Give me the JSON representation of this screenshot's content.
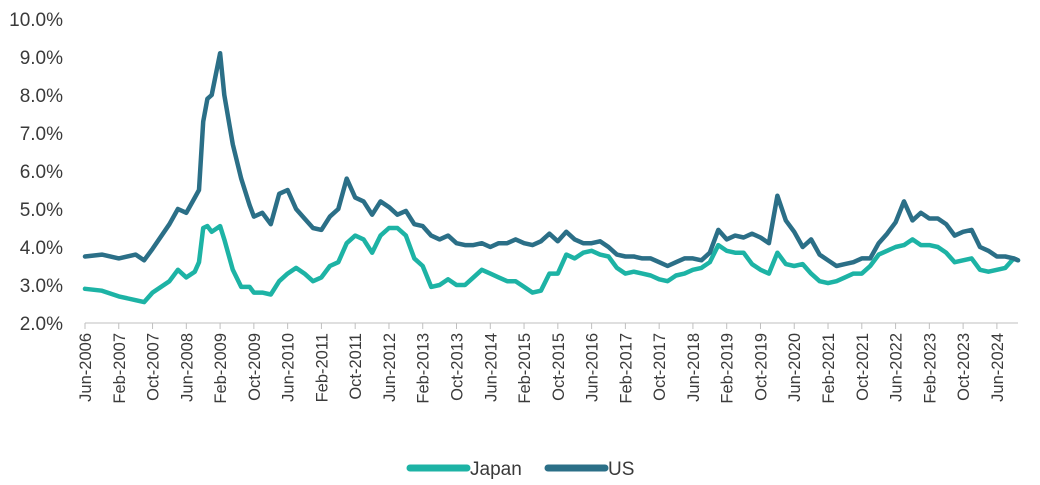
{
  "chart_data": {
    "type": "line",
    "title": "",
    "xlabel": "",
    "ylabel": "",
    "ylim": [
      2.0,
      10.0
    ],
    "yticks": [
      "2.0%",
      "3.0%",
      "4.0%",
      "5.0%",
      "6.0%",
      "7.0%",
      "8.0%",
      "9.0%",
      "10.0%"
    ],
    "xticks": [
      "Jun-2006",
      "Feb-2007",
      "Oct-2007",
      "Jun-2008",
      "Feb-2009",
      "Oct-2009",
      "Jun-2010",
      "Feb-2011",
      "Oct-2011",
      "Jun-2012",
      "Feb-2013",
      "Oct-2013",
      "Jun-2014",
      "Feb-2015",
      "Oct-2015",
      "Jun-2016",
      "Feb-2017",
      "Oct-2017",
      "Jun-2018",
      "Feb-2019",
      "Oct-2019",
      "Jun-2020",
      "Feb-2021",
      "Oct-2021",
      "Jun-2022",
      "Feb-2023",
      "Oct-2023",
      "Jun-2024"
    ],
    "x_start": "Jun-2006",
    "x_end": "Nov-2024",
    "grid": false,
    "legend_position": "bottom-center",
    "series": [
      {
        "name": "Japan",
        "color": "#1db3a5",
        "points": [
          [
            "Jun-2006",
            2.9
          ],
          [
            "Oct-2006",
            2.85
          ],
          [
            "Feb-2007",
            2.7
          ],
          [
            "Jun-2007",
            2.6
          ],
          [
            "Aug-2007",
            2.55
          ],
          [
            "Oct-2007",
            2.8
          ],
          [
            "Feb-2008",
            3.1
          ],
          [
            "Apr-2008",
            3.4
          ],
          [
            "Jun-2008",
            3.2
          ],
          [
            "Aug-2008",
            3.35
          ],
          [
            "Sep-2008",
            3.6
          ],
          [
            "Oct-2008",
            4.5
          ],
          [
            "Nov-2008",
            4.55
          ],
          [
            "Dec-2008",
            4.4
          ],
          [
            "Feb-2009",
            4.55
          ],
          [
            "Mar-2009",
            4.2
          ],
          [
            "May-2009",
            3.4
          ],
          [
            "Jul-2009",
            2.95
          ],
          [
            "Sep-2009",
            2.95
          ],
          [
            "Oct-2009",
            2.8
          ],
          [
            "Dec-2009",
            2.8
          ],
          [
            "Feb-2010",
            2.75
          ],
          [
            "Apr-2010",
            3.1
          ],
          [
            "Jun-2010",
            3.3
          ],
          [
            "Aug-2010",
            3.45
          ],
          [
            "Oct-2010",
            3.3
          ],
          [
            "Dec-2010",
            3.1
          ],
          [
            "Feb-2011",
            3.2
          ],
          [
            "Apr-2011",
            3.5
          ],
          [
            "Jun-2011",
            3.6
          ],
          [
            "Aug-2011",
            4.1
          ],
          [
            "Oct-2011",
            4.3
          ],
          [
            "Dec-2011",
            4.2
          ],
          [
            "Feb-2012",
            3.85
          ],
          [
            "Apr-2012",
            4.3
          ],
          [
            "Jun-2012",
            4.5
          ],
          [
            "Aug-2012",
            4.5
          ],
          [
            "Oct-2012",
            4.3
          ],
          [
            "Dec-2012",
            3.7
          ],
          [
            "Feb-2013",
            3.5
          ],
          [
            "Apr-2013",
            2.95
          ],
          [
            "Jun-2013",
            3.0
          ],
          [
            "Aug-2013",
            3.15
          ],
          [
            "Oct-2013",
            3.0
          ],
          [
            "Dec-2013",
            3.0
          ],
          [
            "Feb-2014",
            3.2
          ],
          [
            "Apr-2014",
            3.4
          ],
          [
            "Jun-2014",
            3.3
          ],
          [
            "Aug-2014",
            3.2
          ],
          [
            "Oct-2014",
            3.1
          ],
          [
            "Dec-2014",
            3.1
          ],
          [
            "Feb-2015",
            2.95
          ],
          [
            "Apr-2015",
            2.8
          ],
          [
            "Jun-2015",
            2.85
          ],
          [
            "Aug-2015",
            3.3
          ],
          [
            "Oct-2015",
            3.3
          ],
          [
            "Dec-2015",
            3.8
          ],
          [
            "Feb-2016",
            3.7
          ],
          [
            "Apr-2016",
            3.85
          ],
          [
            "Jun-2016",
            3.9
          ],
          [
            "Aug-2016",
            3.8
          ],
          [
            "Oct-2016",
            3.75
          ],
          [
            "Dec-2016",
            3.45
          ],
          [
            "Feb-2017",
            3.3
          ],
          [
            "Apr-2017",
            3.35
          ],
          [
            "Jun-2017",
            3.3
          ],
          [
            "Aug-2017",
            3.25
          ],
          [
            "Oct-2017",
            3.15
          ],
          [
            "Dec-2017",
            3.1
          ],
          [
            "Feb-2018",
            3.25
          ],
          [
            "Apr-2018",
            3.3
          ],
          [
            "Jun-2018",
            3.4
          ],
          [
            "Aug-2018",
            3.45
          ],
          [
            "Oct-2018",
            3.6
          ],
          [
            "Dec-2018",
            4.05
          ],
          [
            "Feb-2019",
            3.9
          ],
          [
            "Apr-2019",
            3.85
          ],
          [
            "Jun-2019",
            3.85
          ],
          [
            "Aug-2019",
            3.55
          ],
          [
            "Oct-2019",
            3.4
          ],
          [
            "Dec-2019",
            3.3
          ],
          [
            "Feb-2020",
            3.85
          ],
          [
            "Apr-2020",
            3.55
          ],
          [
            "Jun-2020",
            3.5
          ],
          [
            "Aug-2020",
            3.55
          ],
          [
            "Oct-2020",
            3.3
          ],
          [
            "Dec-2020",
            3.1
          ],
          [
            "Feb-2021",
            3.05
          ],
          [
            "Apr-2021",
            3.1
          ],
          [
            "Jun-2021",
            3.2
          ],
          [
            "Aug-2021",
            3.3
          ],
          [
            "Oct-2021",
            3.3
          ],
          [
            "Dec-2021",
            3.5
          ],
          [
            "Feb-2022",
            3.8
          ],
          [
            "Apr-2022",
            3.9
          ],
          [
            "Jun-2022",
            4.0
          ],
          [
            "Aug-2022",
            4.05
          ],
          [
            "Oct-2022",
            4.2
          ],
          [
            "Dec-2022",
            4.05
          ],
          [
            "Feb-2023",
            4.05
          ],
          [
            "Apr-2023",
            4.0
          ],
          [
            "Jun-2023",
            3.85
          ],
          [
            "Aug-2023",
            3.6
          ],
          [
            "Oct-2023",
            3.65
          ],
          [
            "Dec-2023",
            3.7
          ],
          [
            "Feb-2024",
            3.4
          ],
          [
            "Apr-2024",
            3.35
          ],
          [
            "Jun-2024",
            3.4
          ],
          [
            "Aug-2024",
            3.45
          ],
          [
            "Oct-2024",
            3.7
          ],
          [
            "Nov-2024",
            3.65
          ]
        ]
      },
      {
        "name": "US",
        "color": "#2b6f87",
        "points": [
          [
            "Jun-2006",
            3.75
          ],
          [
            "Oct-2006",
            3.8
          ],
          [
            "Feb-2007",
            3.7
          ],
          [
            "Jun-2007",
            3.8
          ],
          [
            "Aug-2007",
            3.65
          ],
          [
            "Oct-2007",
            3.95
          ],
          [
            "Feb-2008",
            4.6
          ],
          [
            "Apr-2008",
            5.0
          ],
          [
            "Jun-2008",
            4.9
          ],
          [
            "Aug-2008",
            5.3
          ],
          [
            "Sep-2008",
            5.5
          ],
          [
            "Oct-2008",
            7.3
          ],
          [
            "Nov-2008",
            7.9
          ],
          [
            "Dec-2008",
            8.0
          ],
          [
            "Feb-2009",
            9.1
          ],
          [
            "Mar-2009",
            8.0
          ],
          [
            "May-2009",
            6.7
          ],
          [
            "Jul-2009",
            5.8
          ],
          [
            "Sep-2009",
            5.1
          ],
          [
            "Oct-2009",
            4.8
          ],
          [
            "Dec-2009",
            4.9
          ],
          [
            "Feb-2010",
            4.6
          ],
          [
            "Apr-2010",
            5.4
          ],
          [
            "Jun-2010",
            5.5
          ],
          [
            "Aug-2010",
            5.0
          ],
          [
            "Oct-2010",
            4.75
          ],
          [
            "Dec-2010",
            4.5
          ],
          [
            "Feb-2011",
            4.45
          ],
          [
            "Apr-2011",
            4.8
          ],
          [
            "Jun-2011",
            5.0
          ],
          [
            "Aug-2011",
            5.8
          ],
          [
            "Oct-2011",
            5.3
          ],
          [
            "Dec-2011",
            5.2
          ],
          [
            "Feb-2012",
            4.85
          ],
          [
            "Apr-2012",
            5.2
          ],
          [
            "Jun-2012",
            5.05
          ],
          [
            "Aug-2012",
            4.85
          ],
          [
            "Oct-2012",
            4.95
          ],
          [
            "Dec-2012",
            4.6
          ],
          [
            "Feb-2013",
            4.55
          ],
          [
            "Apr-2013",
            4.3
          ],
          [
            "Jun-2013",
            4.2
          ],
          [
            "Aug-2013",
            4.3
          ],
          [
            "Oct-2013",
            4.1
          ],
          [
            "Dec-2013",
            4.05
          ],
          [
            "Feb-2014",
            4.05
          ],
          [
            "Apr-2014",
            4.1
          ],
          [
            "Jun-2014",
            4.0
          ],
          [
            "Aug-2014",
            4.1
          ],
          [
            "Oct-2014",
            4.1
          ],
          [
            "Dec-2014",
            4.2
          ],
          [
            "Feb-2015",
            4.1
          ],
          [
            "Apr-2015",
            4.05
          ],
          [
            "Jun-2015",
            4.15
          ],
          [
            "Aug-2015",
            4.35
          ],
          [
            "Oct-2015",
            4.15
          ],
          [
            "Dec-2015",
            4.4
          ],
          [
            "Feb-2016",
            4.2
          ],
          [
            "Apr-2016",
            4.1
          ],
          [
            "Jun-2016",
            4.1
          ],
          [
            "Aug-2016",
            4.15
          ],
          [
            "Oct-2016",
            4.0
          ],
          [
            "Dec-2016",
            3.8
          ],
          [
            "Feb-2017",
            3.75
          ],
          [
            "Apr-2017",
            3.75
          ],
          [
            "Jun-2017",
            3.7
          ],
          [
            "Aug-2017",
            3.7
          ],
          [
            "Oct-2017",
            3.6
          ],
          [
            "Dec-2017",
            3.5
          ],
          [
            "Feb-2018",
            3.6
          ],
          [
            "Apr-2018",
            3.7
          ],
          [
            "Jun-2018",
            3.7
          ],
          [
            "Aug-2018",
            3.65
          ],
          [
            "Oct-2018",
            3.85
          ],
          [
            "Dec-2018",
            4.45
          ],
          [
            "Feb-2019",
            4.2
          ],
          [
            "Apr-2019",
            4.3
          ],
          [
            "Jun-2019",
            4.25
          ],
          [
            "Aug-2019",
            4.35
          ],
          [
            "Oct-2019",
            4.25
          ],
          [
            "Dec-2019",
            4.1
          ],
          [
            "Feb-2020",
            5.35
          ],
          [
            "Apr-2020",
            4.7
          ],
          [
            "Jun-2020",
            4.4
          ],
          [
            "Aug-2020",
            4.0
          ],
          [
            "Oct-2020",
            4.2
          ],
          [
            "Dec-2020",
            3.8
          ],
          [
            "Feb-2021",
            3.65
          ],
          [
            "Apr-2021",
            3.5
          ],
          [
            "Jun-2021",
            3.55
          ],
          [
            "Aug-2021",
            3.6
          ],
          [
            "Oct-2021",
            3.7
          ],
          [
            "Dec-2021",
            3.7
          ],
          [
            "Feb-2022",
            4.1
          ],
          [
            "Apr-2022",
            4.35
          ],
          [
            "Jun-2022",
            4.65
          ],
          [
            "Aug-2022",
            5.2
          ],
          [
            "Oct-2022",
            4.7
          ],
          [
            "Dec-2022",
            4.9
          ],
          [
            "Feb-2023",
            4.75
          ],
          [
            "Apr-2023",
            4.75
          ],
          [
            "Jun-2023",
            4.6
          ],
          [
            "Aug-2023",
            4.3
          ],
          [
            "Oct-2023",
            4.4
          ],
          [
            "Dec-2023",
            4.45
          ],
          [
            "Feb-2024",
            4.0
          ],
          [
            "Apr-2024",
            3.9
          ],
          [
            "Jun-2024",
            3.75
          ],
          [
            "Aug-2024",
            3.75
          ],
          [
            "Oct-2024",
            3.7
          ],
          [
            "Nov-2024",
            3.65
          ]
        ]
      }
    ]
  }
}
